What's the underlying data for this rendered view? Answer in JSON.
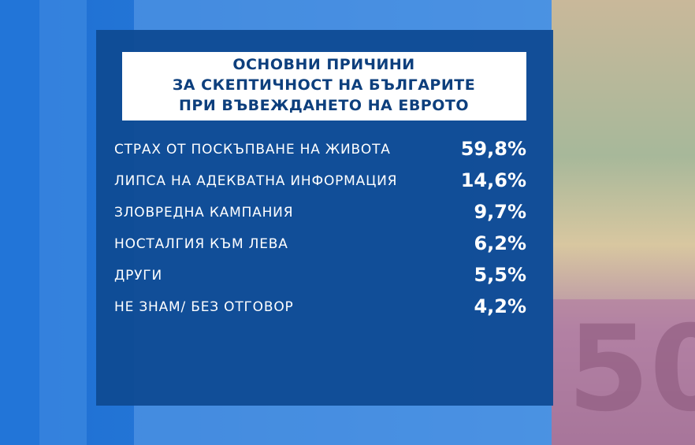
{
  "header": {
    "title_lines": [
      "ОСНОВНИ ПРИЧИНИ",
      "ЗА СКЕПТИЧНОСТ НА БЪЛГАРИТЕ",
      "ПРИ ВЪВЕЖДАНЕТО НА ЕВРОТО"
    ]
  },
  "table": {
    "rows": [
      [
        "СТРАХ ОТ ПОСКЪПВАНЕ НА ЖИВОТА",
        "59,8%"
      ],
      [
        "ЛИПСА НА АДЕКВАТНА ИНФОРМАЦИЯ",
        "14,6%"
      ],
      [
        "ЗЛОВРЕДНА КАМПАНИЯ",
        "9,7%"
      ],
      [
        "НОСТАЛГИЯ КЪМ ЛЕВА",
        "6,2%"
      ],
      [
        "ДРУГИ",
        "5,5%"
      ],
      [
        "НЕ ЗНАМ/ БЕЗ ОТГОВОР",
        "4,2%"
      ]
    ]
  }
}
